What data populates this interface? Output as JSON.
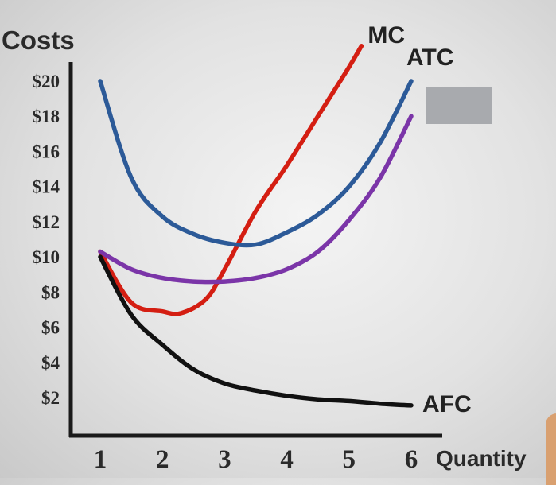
{
  "chart_data": {
    "type": "line",
    "ylabel": "Costs",
    "xlabel": "Quantity",
    "x_ticks": [
      "1",
      "2",
      "3",
      "4",
      "5",
      "6"
    ],
    "y_ticks": [
      "$2",
      "$4",
      "$6",
      "$8",
      "$10",
      "$12",
      "$14",
      "$16",
      "$18",
      "$20"
    ],
    "xlim": [
      0.6,
      6.4
    ],
    "ylim": [
      1.5,
      20.5
    ],
    "grid": false,
    "series": [
      {
        "name": "MC",
        "color": "#d41e12",
        "points": [
          [
            1.0,
            10.3
          ],
          [
            1.5,
            7.4
          ],
          [
            2.0,
            6.9
          ],
          [
            2.3,
            6.8
          ],
          [
            2.7,
            7.6
          ],
          [
            3.0,
            9.3
          ],
          [
            3.5,
            12.6
          ],
          [
            4.0,
            15.2
          ],
          [
            4.5,
            18.0
          ],
          [
            5.0,
            20.8
          ],
          [
            5.2,
            22.0
          ]
        ]
      },
      {
        "name": "ATC",
        "color": "#2c5a98",
        "points": [
          [
            1.0,
            20.0
          ],
          [
            1.5,
            14.5
          ],
          [
            2.0,
            12.3
          ],
          [
            2.5,
            11.3
          ],
          [
            3.0,
            10.8
          ],
          [
            3.5,
            10.7
          ],
          [
            4.0,
            11.4
          ],
          [
            4.5,
            12.4
          ],
          [
            5.0,
            14.0
          ],
          [
            5.5,
            16.5
          ],
          [
            6.0,
            20.0
          ]
        ]
      },
      {
        "name": "",
        "color": "#7b35a8",
        "points": [
          [
            1.0,
            10.3
          ],
          [
            1.5,
            9.3
          ],
          [
            2.0,
            8.8
          ],
          [
            2.5,
            8.6
          ],
          [
            3.0,
            8.6
          ],
          [
            3.5,
            8.8
          ],
          [
            4.0,
            9.3
          ],
          [
            4.5,
            10.3
          ],
          [
            5.0,
            12.1
          ],
          [
            5.5,
            14.5
          ],
          [
            6.0,
            18.0
          ]
        ]
      },
      {
        "name": "AFC",
        "color": "#111111",
        "points": [
          [
            1.0,
            10.0
          ],
          [
            1.5,
            6.7
          ],
          [
            2.0,
            5.0
          ],
          [
            2.5,
            3.6
          ],
          [
            3.0,
            2.8
          ],
          [
            3.5,
            2.4
          ],
          [
            4.0,
            2.1
          ],
          [
            4.5,
            1.9
          ],
          [
            5.0,
            1.8
          ],
          [
            5.5,
            1.65
          ],
          [
            6.0,
            1.55
          ]
        ]
      }
    ]
  }
}
